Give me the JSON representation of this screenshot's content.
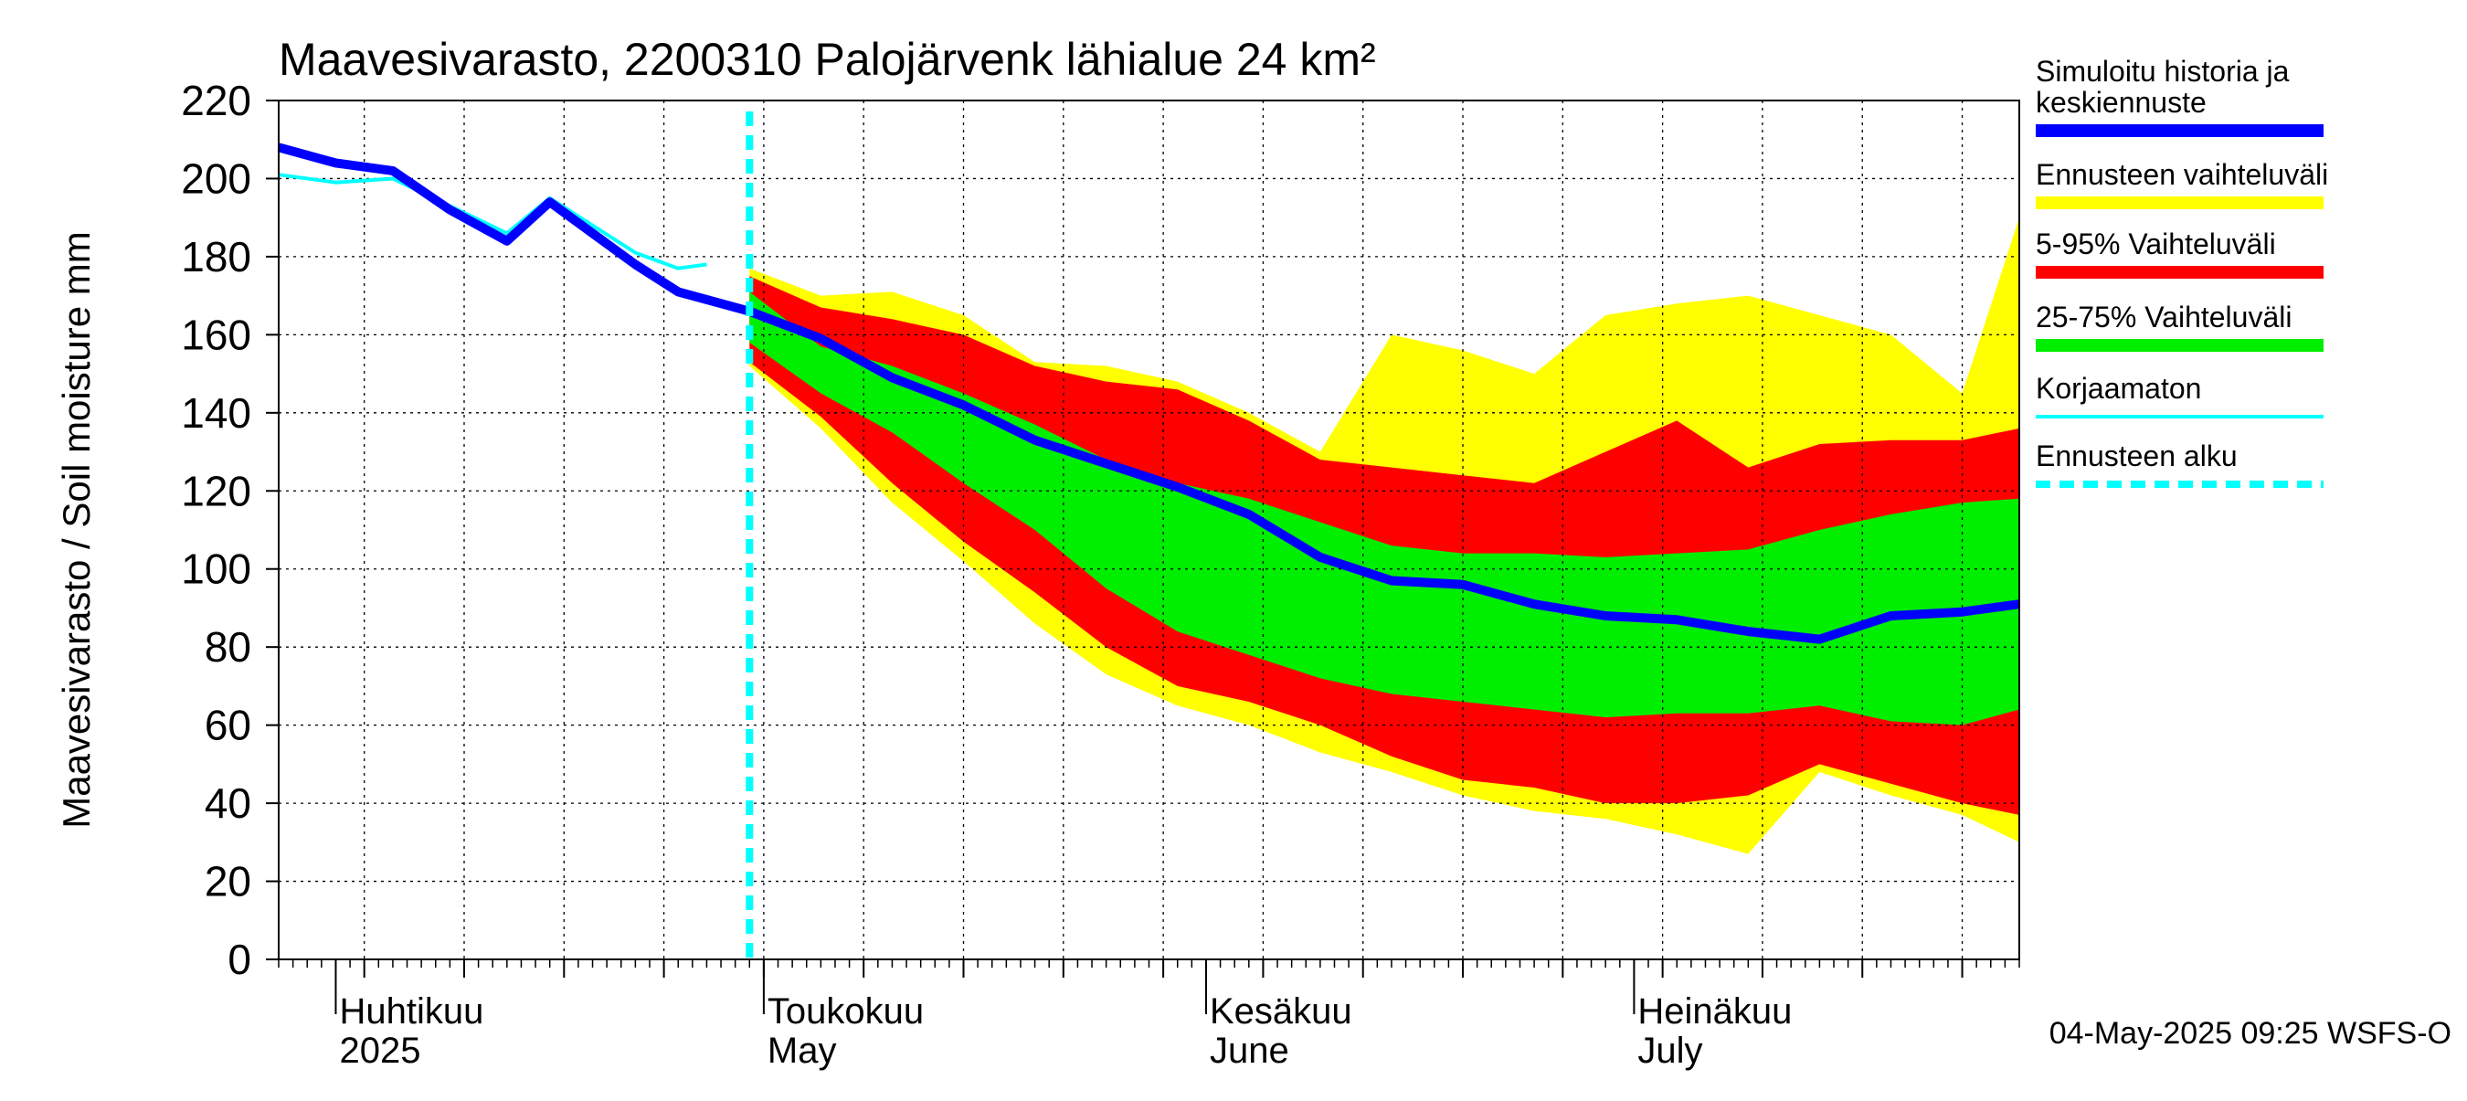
{
  "chart_data": {
    "type": "area",
    "title": "Maavesivarasto, 2200310 Palojärvenk lähialue 24 km²",
    "ylabel": "Maavesivarasto / Soil moisture   mm",
    "ylim": [
      0,
      220
    ],
    "yticks": [
      0,
      20,
      40,
      60,
      80,
      100,
      120,
      140,
      160,
      180,
      200,
      220
    ],
    "xlim": [
      "2025-03-28",
      "2025-07-28"
    ],
    "grid": true,
    "legend_position": "right",
    "timestamp": "04-May-2025 09:25 WSFS-O",
    "forecast_start": "2025-04-30",
    "month_labels": [
      {
        "date": "2025-04-01",
        "line1": "Huhtikuu",
        "line2": "2025"
      },
      {
        "date": "2025-05-01",
        "line1": "Toukokuu",
        "line2": "May"
      },
      {
        "date": "2025-06-01",
        "line1": "Kesäkuu",
        "line2": "June"
      },
      {
        "date": "2025-07-01",
        "line1": "Heinäkuu",
        "line2": "July"
      }
    ],
    "legend": [
      {
        "label_lines": [
          "Simuloitu historia ja",
          "keskiennuste"
        ],
        "color": "#0000ff",
        "style": "thick"
      },
      {
        "label_lines": [
          "Ennusteen vaihteluväli"
        ],
        "color": "#ffff00",
        "style": "thick"
      },
      {
        "label_lines": [
          "5-95% Vaihteluväli"
        ],
        "color": "#ff0000",
        "style": "thick"
      },
      {
        "label_lines": [
          "25-75% Vaihteluväli"
        ],
        "color": "#00ee00",
        "style": "thick"
      },
      {
        "label_lines": [
          "Korjaamaton"
        ],
        "color": "#00ffff",
        "style": "thin"
      },
      {
        "label_lines": [
          "Ennusteen alku"
        ],
        "color": "#00ffff",
        "style": "dashed"
      }
    ],
    "colors": {
      "history": "#0000ff",
      "range": "#ffff00",
      "p5_95": "#ff0000",
      "p25_75": "#00ee00",
      "uncorrected": "#00ffff",
      "forecast_start": "#00ffff"
    },
    "dates": [
      "2025-04-30",
      "2025-05-05",
      "2025-05-10",
      "2025-05-15",
      "2025-05-20",
      "2025-05-25",
      "2025-05-30",
      "2025-06-04",
      "2025-06-09",
      "2025-06-14",
      "2025-06-19",
      "2025-06-24",
      "2025-06-29",
      "2025-07-04",
      "2025-07-09",
      "2025-07-14",
      "2025-07-19",
      "2025-07-24",
      "2025-07-28"
    ],
    "range_upper": [
      177,
      170,
      171,
      165,
      153,
      152,
      148,
      140,
      130,
      160,
      156,
      150,
      165,
      168,
      170,
      165,
      160,
      145,
      190
    ],
    "range_lower": [
      152,
      136,
      117,
      102,
      86,
      73,
      65,
      60,
      53,
      48,
      42,
      38,
      36,
      32,
      27,
      48,
      42,
      37,
      30
    ],
    "p95": [
      175,
      167,
      164,
      160,
      152,
      148,
      146,
      138,
      128,
      126,
      124,
      122,
      130,
      138,
      126,
      132,
      133,
      133,
      136
    ],
    "p5": [
      153,
      139,
      122,
      107,
      94,
      80,
      70,
      66,
      60,
      52,
      46,
      44,
      40,
      40,
      42,
      50,
      45,
      40,
      37
    ],
    "p75": [
      171,
      157,
      152,
      145,
      137,
      128,
      122,
      118,
      112,
      106,
      104,
      104,
      103,
      104,
      105,
      110,
      114,
      117,
      118
    ],
    "p25": [
      158,
      145,
      135,
      122,
      110,
      95,
      84,
      78,
      72,
      68,
      66,
      64,
      62,
      63,
      63,
      65,
      61,
      60,
      64
    ],
    "median": [
      166,
      159,
      149,
      142,
      133,
      127,
      121,
      114,
      103,
      97,
      96,
      91,
      88,
      87,
      84,
      82,
      88,
      89,
      91
    ],
    "history": {
      "dates": [
        "2025-03-28",
        "2025-04-01",
        "2025-04-05",
        "2025-04-09",
        "2025-04-13",
        "2025-04-16",
        "2025-04-19",
        "2025-04-22",
        "2025-04-25",
        "2025-04-28",
        "2025-04-30"
      ],
      "values": [
        208,
        204,
        202,
        192,
        184,
        194,
        186,
        178,
        171,
        168,
        166
      ]
    },
    "uncorrected": {
      "dates": [
        "2025-03-28",
        "2025-04-01",
        "2025-04-05",
        "2025-04-09",
        "2025-04-13",
        "2025-04-16",
        "2025-04-19",
        "2025-04-22",
        "2025-04-25",
        "2025-04-27"
      ],
      "values": [
        201,
        199,
        200,
        193,
        186,
        195,
        188,
        181,
        177,
        178
      ]
    }
  }
}
